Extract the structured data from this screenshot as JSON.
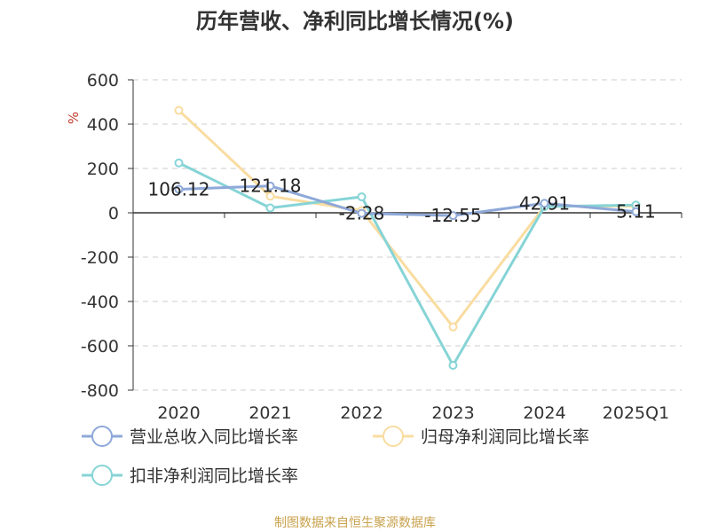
{
  "chart_data": {
    "type": "line",
    "title": "历年营收、净利同比增长情况(%)",
    "ylabel": "%",
    "xlabel": "",
    "categories": [
      "2020",
      "2021",
      "2022",
      "2023",
      "2024",
      "2025Q1"
    ],
    "ylim": [
      -800,
      600
    ],
    "yticks": [
      600,
      400,
      200,
      0,
      -200,
      -400,
      -600,
      -800
    ],
    "ytick_labels": [
      "600",
      "400",
      "200",
      "0",
      "-200",
      "-400",
      "-600",
      "-800"
    ],
    "grid": true,
    "legend_position": "bottom",
    "series": [
      {
        "name": "营业总收入同比增长率",
        "color": "#8ea8d8",
        "values": [
          106.12,
          121.18,
          -2.28,
          -12.55,
          42.91,
          5.11
        ],
        "labels": [
          "106.12",
          "121.18",
          "-2.28",
          "-12.55",
          "42.91",
          "5.11"
        ]
      },
      {
        "name": "归母净利润同比增长率",
        "color": "#f9dca0",
        "values": [
          462,
          75,
          10,
          -515,
          30,
          30
        ]
      },
      {
        "name": "扣非净利润同比增长率",
        "color": "#86d4d6",
        "values": [
          225,
          22,
          72,
          -688,
          28,
          35
        ]
      }
    ]
  },
  "source_text": "制图数据来自恒生聚源数据库",
  "colors": {
    "axis": "#333333",
    "grid": "#cccccc",
    "unit": "#c0392b",
    "source": "#c8a14c"
  }
}
